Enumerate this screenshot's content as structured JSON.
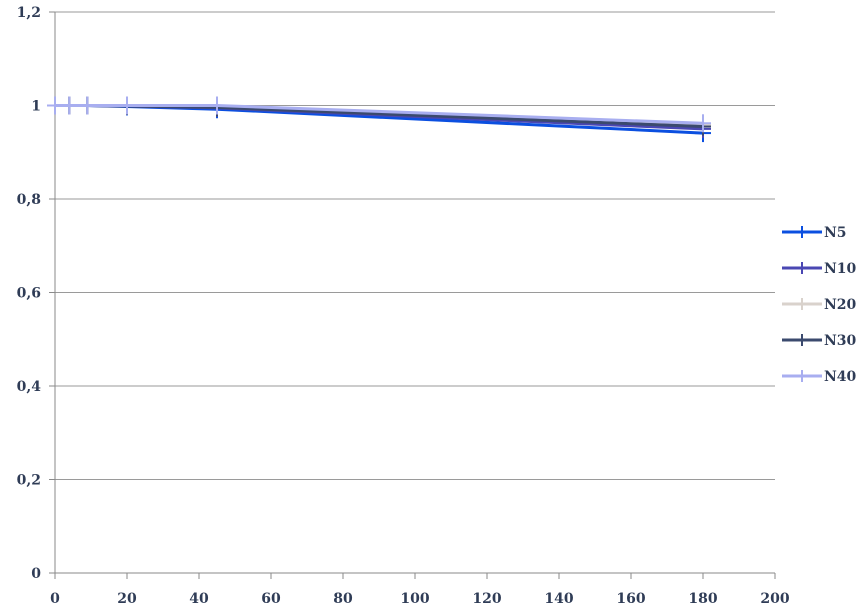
{
  "chart_data": {
    "type": "line",
    "title": "",
    "xlabel": "",
    "ylabel": "",
    "xlim": [
      0,
      200
    ],
    "ylim": [
      0,
      1.2
    ],
    "x_ticks": [
      "0",
      "20",
      "40",
      "60",
      "80",
      "100",
      "120",
      "140",
      "160",
      "180",
      "200"
    ],
    "y_ticks": [
      "0",
      "0,2",
      "0,4",
      "0,6",
      "0,8",
      "1",
      "1,2"
    ],
    "grid": "horizontal",
    "legend_position": "right",
    "marker": "cross",
    "series": [
      {
        "name": "N5",
        "color": "#0b4fe0",
        "x": [
          0,
          4,
          9,
          20,
          45,
          180
        ],
        "y": [
          1.0,
          1.0,
          1.0,
          0.998,
          0.992,
          0.941
        ]
      },
      {
        "name": "N10",
        "color": "#4a47b3",
        "x": [
          0,
          4,
          9,
          20,
          45,
          180
        ],
        "y": [
          1.0,
          1.0,
          1.0,
          0.999,
          0.995,
          0.95
        ]
      },
      {
        "name": "N20",
        "color": "#d9d2cc",
        "x": [
          0,
          4,
          9,
          20,
          45,
          180
        ],
        "y": [
          1.0,
          1.0,
          1.0,
          1.0,
          0.998,
          0.958
        ]
      },
      {
        "name": "N30",
        "color": "#3b4a6e",
        "x": [
          0,
          4,
          9,
          20,
          45,
          180
        ],
        "y": [
          1.0,
          1.0,
          1.0,
          0.999,
          0.996,
          0.955
        ]
      },
      {
        "name": "N40",
        "color": "#a8aef0",
        "x": [
          0,
          4,
          9,
          20,
          45,
          180
        ],
        "y": [
          1.0,
          1.0,
          1.0,
          1.0,
          1.0,
          0.962
        ]
      }
    ]
  }
}
